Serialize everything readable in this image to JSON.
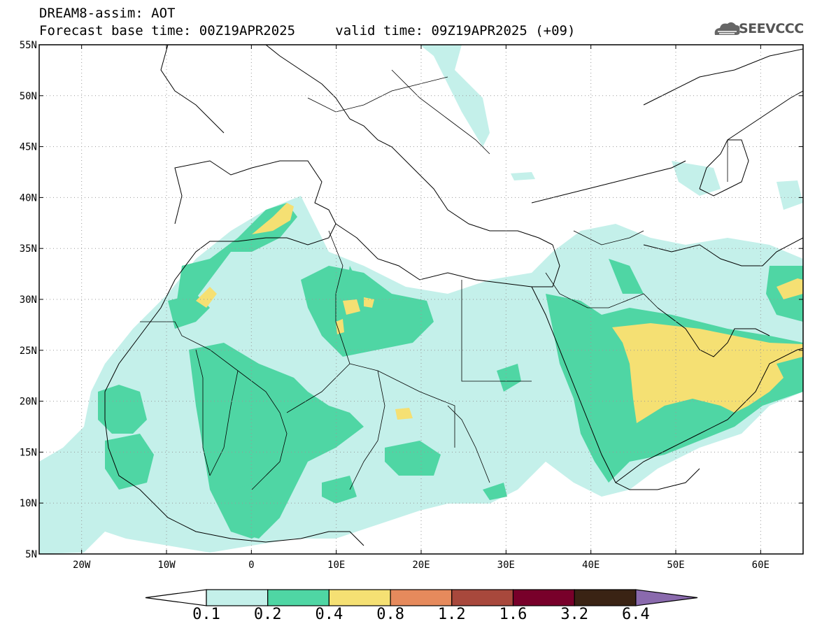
{
  "header": {
    "title": "DREAM8-assim: AOT",
    "base_time_label": "Forecast base time: 00Z19APR2025",
    "valid_time_label": "valid time: 09Z19APR2025 (+09)"
  },
  "logo": {
    "text": "SEEVCCC",
    "icon": "cloud-icon"
  },
  "map": {
    "lon_range": [
      -25,
      65
    ],
    "lat_range": [
      5,
      55
    ],
    "lat_ticks": [
      "5N",
      "10N",
      "15N",
      "20N",
      "25N",
      "30N",
      "35N",
      "40N",
      "45N",
      "50N",
      "55N"
    ],
    "lon_ticks": [
      "20W",
      "10W",
      "0",
      "10E",
      "20E",
      "30E",
      "40E",
      "50E",
      "60E"
    ],
    "gridlines": true
  },
  "colorbar": {
    "labels": [
      "0.1",
      "0.2",
      "0.4",
      "0.8",
      "1.2",
      "1.6",
      "3.2",
      "6.4"
    ],
    "colors": [
      "#c4f0ea",
      "#4fd6a4",
      "#f5e073",
      "#e68a5c",
      "#a8483c",
      "#78002a",
      "#3a2314",
      "#8a6aad"
    ],
    "below_color": "#ffffff"
  }
}
